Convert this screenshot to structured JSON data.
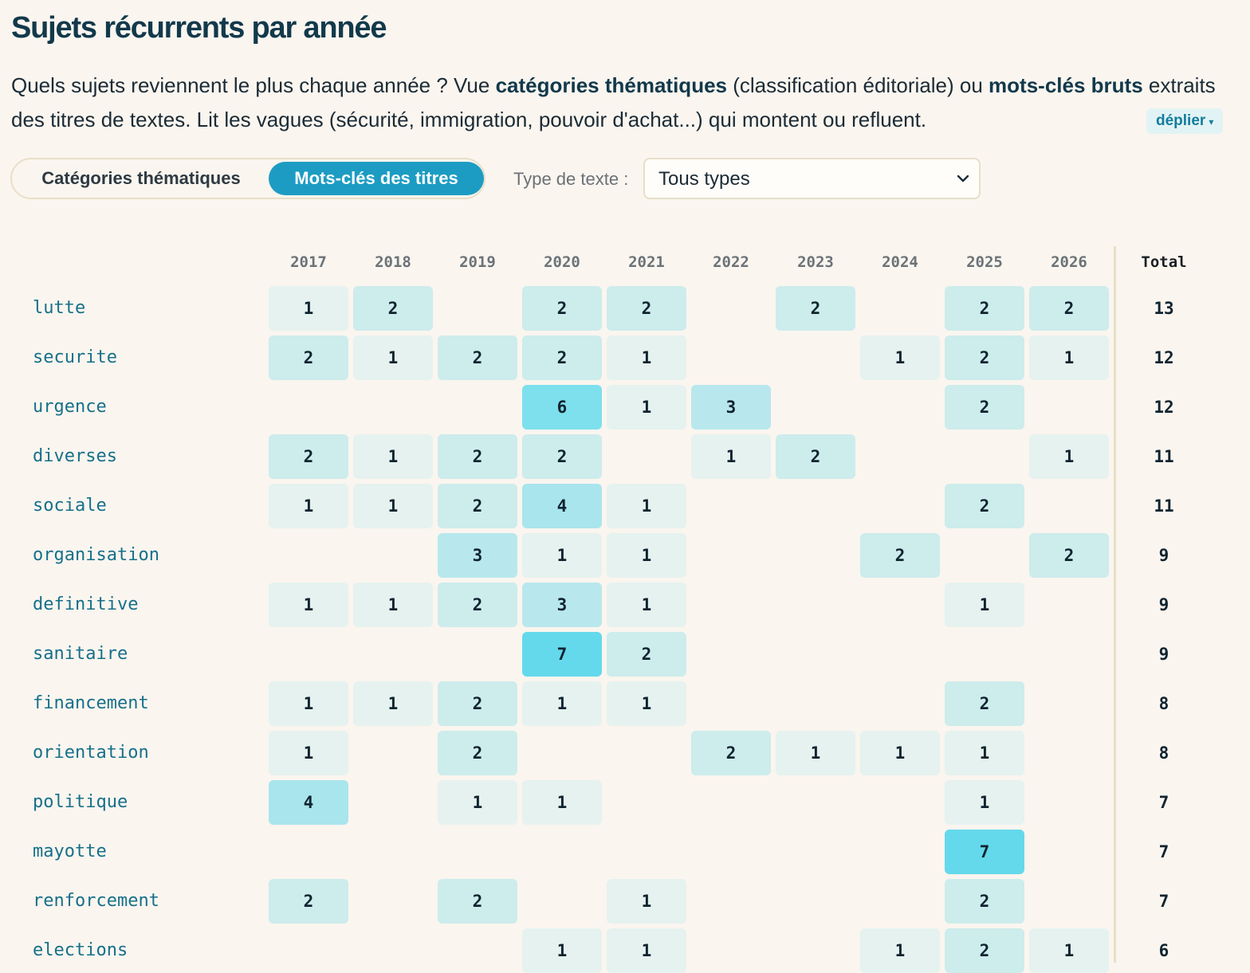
{
  "page": {
    "title": "Sujets récurrents par année",
    "intro": {
      "p1": "Quels sujets reviennent le plus chaque année ? Vue ",
      "b1": "catégories thématiques",
      "p2": " (classification éditoriale) ou ",
      "b2": "mots-clés bruts",
      "p3": " extraits des titres de textes. Lit les vagues (sécurité, immigration, pouvoir d'achat...) qui montent ou refluent."
    },
    "expand_label": "déplier"
  },
  "toggle": {
    "option_categories": "Catégories thématiques",
    "option_keywords": "Mots-clés des titres",
    "active": "Mots-clés des titres"
  },
  "filter": {
    "label": "Type de texte :",
    "value": "Tous types"
  },
  "colors": {
    "accent": "#1c9cc2",
    "scale": [
      "#e6f2ef",
      "#cdecec",
      "#b8e8ed",
      "#a9e5ed",
      "#7de0ec",
      "#64d9eb"
    ]
  },
  "chart_data": {
    "type": "heatmap",
    "title": "Sujets récurrents par année",
    "total_label": "Total",
    "years": [
      "2017",
      "2018",
      "2019",
      "2020",
      "2021",
      "2022",
      "2023",
      "2024",
      "2025",
      "2026"
    ],
    "rows": [
      {
        "label": "lutte",
        "values": [
          1,
          2,
          null,
          2,
          2,
          null,
          2,
          null,
          2,
          2
        ],
        "total": 13
      },
      {
        "label": "securite",
        "values": [
          2,
          1,
          2,
          2,
          1,
          null,
          null,
          1,
          2,
          1
        ],
        "total": 12
      },
      {
        "label": "urgence",
        "values": [
          null,
          null,
          null,
          6,
          1,
          3,
          null,
          null,
          2,
          null
        ],
        "total": 12
      },
      {
        "label": "diverses",
        "values": [
          2,
          1,
          2,
          2,
          null,
          1,
          2,
          null,
          null,
          1
        ],
        "total": 11
      },
      {
        "label": "sociale",
        "values": [
          1,
          1,
          2,
          4,
          1,
          null,
          null,
          null,
          2,
          null
        ],
        "total": 11
      },
      {
        "label": "organisation",
        "values": [
          null,
          null,
          3,
          1,
          1,
          null,
          null,
          2,
          null,
          2
        ],
        "total": 9
      },
      {
        "label": "definitive",
        "values": [
          1,
          1,
          2,
          3,
          1,
          null,
          null,
          null,
          1,
          null
        ],
        "total": 9
      },
      {
        "label": "sanitaire",
        "values": [
          null,
          null,
          null,
          7,
          2,
          null,
          null,
          null,
          null,
          null
        ],
        "total": 9
      },
      {
        "label": "financement",
        "values": [
          1,
          1,
          2,
          1,
          1,
          null,
          null,
          null,
          2,
          null
        ],
        "total": 8
      },
      {
        "label": "orientation",
        "values": [
          1,
          null,
          2,
          null,
          null,
          2,
          1,
          1,
          1,
          null
        ],
        "total": 8
      },
      {
        "label": "politique",
        "values": [
          4,
          null,
          1,
          1,
          null,
          null,
          null,
          null,
          1,
          null
        ],
        "total": 7
      },
      {
        "label": "mayotte",
        "values": [
          null,
          null,
          null,
          null,
          null,
          null,
          null,
          null,
          7,
          null
        ],
        "total": 7
      },
      {
        "label": "renforcement",
        "values": [
          2,
          null,
          2,
          null,
          1,
          null,
          null,
          null,
          2,
          null
        ],
        "total": 7
      },
      {
        "label": "elections",
        "values": [
          null,
          null,
          null,
          1,
          1,
          null,
          null,
          1,
          2,
          1
        ],
        "total": 6
      }
    ]
  }
}
